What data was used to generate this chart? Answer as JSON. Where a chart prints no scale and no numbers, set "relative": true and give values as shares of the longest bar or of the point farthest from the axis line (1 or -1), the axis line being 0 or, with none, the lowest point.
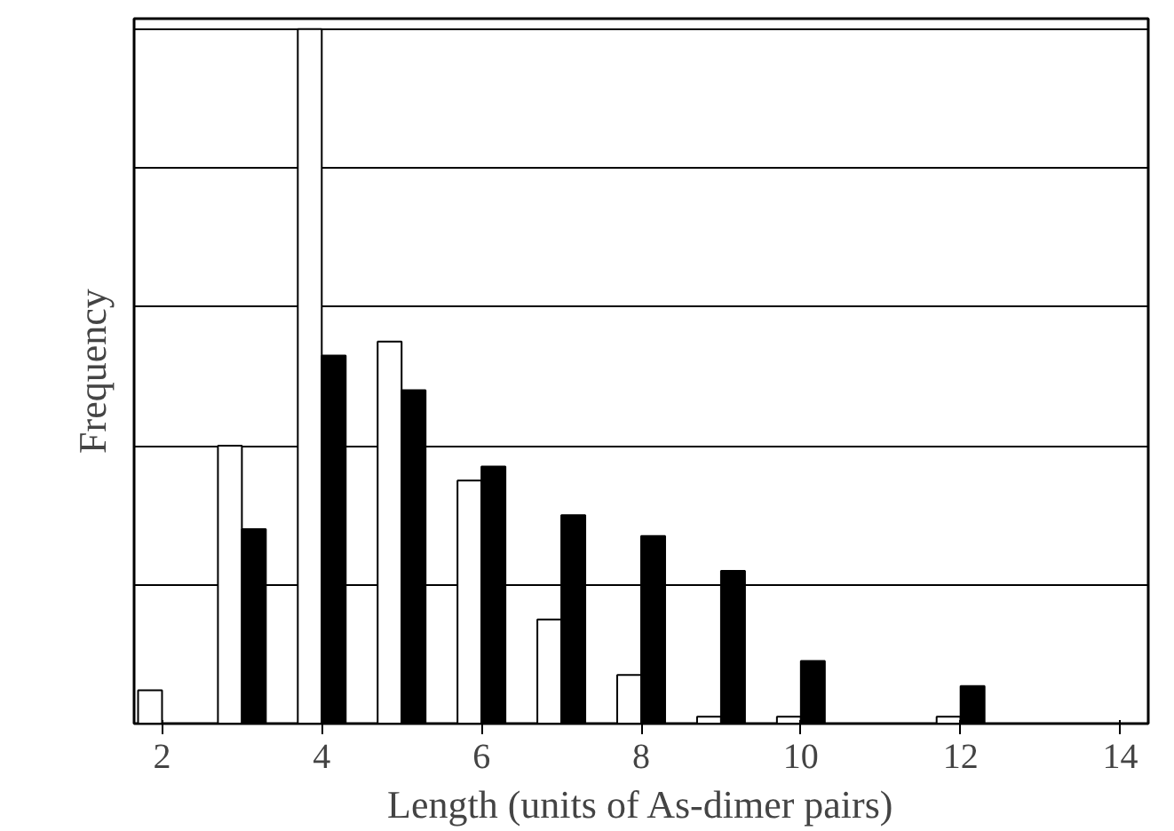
{
  "chart_data": {
    "type": "bar",
    "relative": true,
    "xlabel": "Length (units of As-dimer pairs)",
    "ylabel": "Frequency",
    "categories": [
      "2",
      null,
      "4",
      null,
      "6",
      null,
      "8",
      null,
      "10",
      null,
      "12",
      null,
      "14"
    ],
    "grid": "y",
    "series": [
      {
        "color": "#ffffff",
        "values": [
          0.048,
          0.4,
          1.0,
          0.55,
          0.35,
          0.15,
          0.07,
          0.01,
          0.01,
          null,
          0.01,
          null,
          null
        ]
      },
      {
        "color": "#000000",
        "values": [
          null,
          0.28,
          0.53,
          0.48,
          0.37,
          0.3,
          0.27,
          0.22,
          0.09,
          null,
          0.054,
          null,
          null
        ]
      }
    ]
  }
}
